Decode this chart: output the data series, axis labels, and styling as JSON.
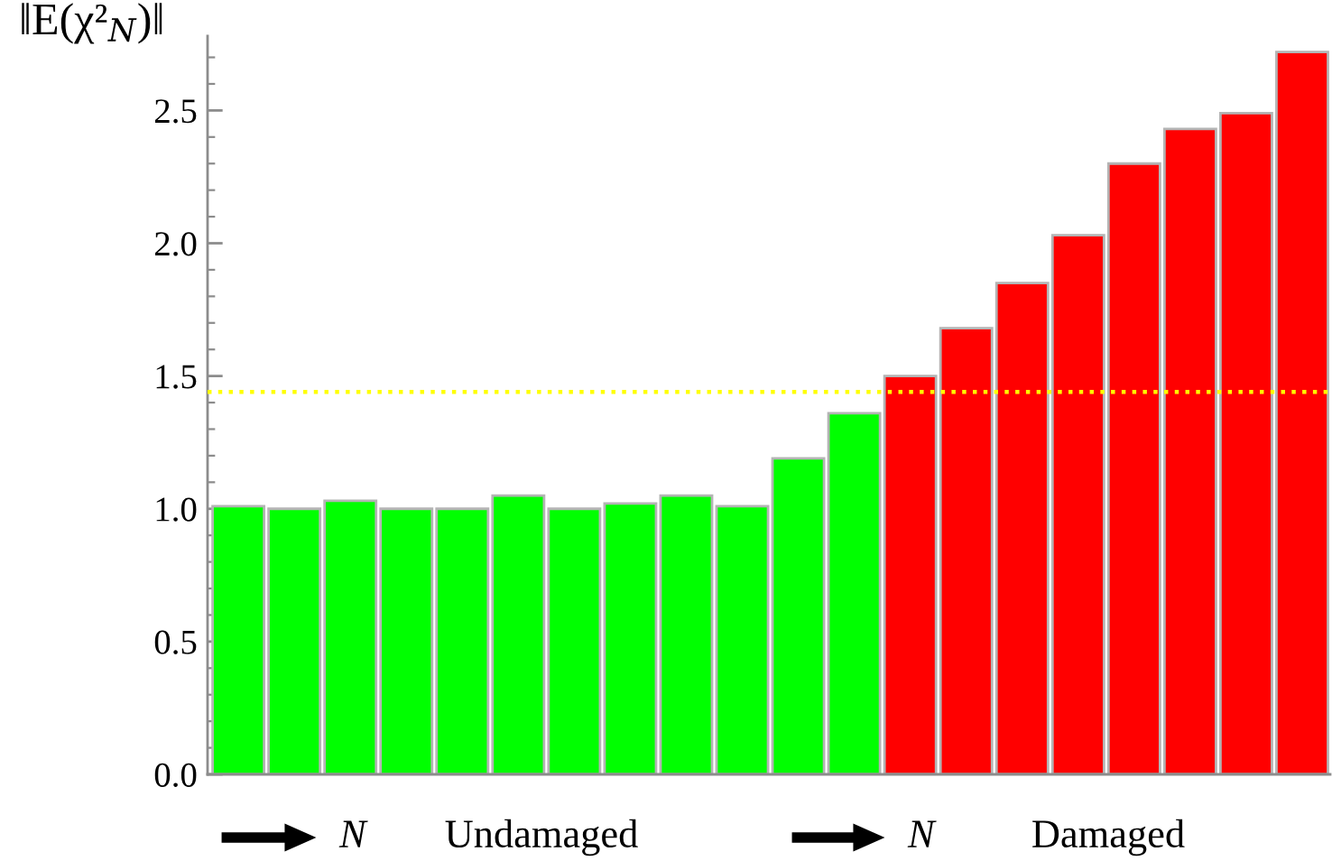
{
  "chart_data": {
    "type": "bar",
    "ylabel": "‖E(χ²$_{N}$)‖",
    "categories": [
      null,
      null,
      null,
      null,
      null,
      null,
      null,
      null,
      null,
      null,
      null,
      null,
      null,
      null,
      null,
      null,
      null,
      null,
      null,
      null
    ],
    "values": [
      1.01,
      1.0,
      1.03,
      1.0,
      1.0,
      1.05,
      1.0,
      1.02,
      1.05,
      1.01,
      1.19,
      1.36,
      1.5,
      1.68,
      1.85,
      2.03,
      2.3,
      2.43,
      2.49,
      2.72
    ],
    "colors": [
      "#00ff00",
      "#00ff00",
      "#00ff00",
      "#00ff00",
      "#00ff00",
      "#00ff00",
      "#00ff00",
      "#00ff00",
      "#00ff00",
      "#00ff00",
      "#00ff00",
      "#00ff00",
      "#ff0000",
      "#ff0000",
      "#ff0000",
      "#ff0000",
      "#ff0000",
      "#ff0000",
      "#ff0000",
      "#ff0000"
    ],
    "ylim": [
      0,
      2.78
    ],
    "yticks": [
      {
        "value": 0,
        "label": "0.0"
      },
      {
        "value": 0.5,
        "label": "0.5"
      },
      {
        "value": 1,
        "label": "1.0"
      },
      {
        "value": 1.5,
        "label": "1.5"
      },
      {
        "value": 2,
        "label": "2.0"
      },
      {
        "value": 2.5,
        "label": "2.5"
      }
    ],
    "tick_labels": "y",
    "ref_lines": [
      {
        "axis": "y",
        "value": 1.44,
        "color": "#ffff00",
        "line_style": "dotted"
      }
    ],
    "annotations": [
      "N",
      "Undamaged",
      "N",
      "Damaged"
    ]
  }
}
